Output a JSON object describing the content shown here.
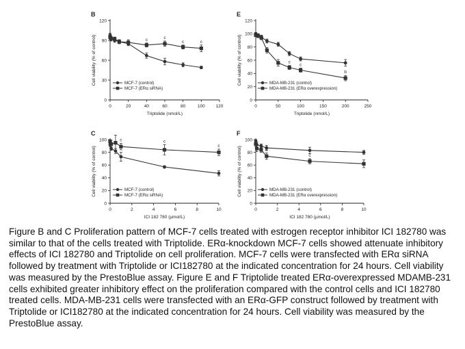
{
  "caption": "Figure B and C Proliferation pattern of MCF-7 cells treated with estrogen receptor inhibitor ICI 182780 was similar to that of the cells treated with Triptolide. ERα-knockdown MCF-7 cells showed attenuate inhibitory effects of ICI 182780 and Triptolide on cell proliferation. MCF-7 cells were transfected with ERα siRNA followed by treatment with Triptolide or ICI182780 at the indicated concentration for 24 hours. Cell viability was measured by the PrestoBlue assay. Figure E and F Triptolide treated ERα-overexpressed MDAMB-231 cells exhibited greater inhibitory effect on the proliferation compared with the control cells and ICI 182780 treated cells. MDA-MB-231 cells were transfected with an ERα-GFP construct followed by treatment with Triptolide or ICI182780 at the indicated concentration for 24 hours. Cell viability was measured by the PrestoBlue assay.",
  "colors": {
    "line": "#333333",
    "axis": "#222222",
    "text": "#222222"
  },
  "chart_data": [
    {
      "panel": "B",
      "type": "line",
      "ylabel": "Cell viability (% of control)",
      "xlabel": "Triptolide (nmol/L)",
      "xlim": [
        0,
        120
      ],
      "ylim": [
        0,
        120
      ],
      "xticks": [
        0,
        20,
        40,
        60,
        80,
        100,
        120
      ],
      "yticks": [
        0,
        30,
        60,
        90,
        120
      ],
      "legend_position": "bottom-left",
      "series": [
        {
          "name": "MCF-7 (control)",
          "marker": "circle",
          "x": [
            0,
            1,
            5,
            10,
            20,
            40,
            60,
            80,
            100
          ],
          "y": [
            98,
            92,
            90,
            88,
            85,
            67,
            58,
            53,
            49
          ],
          "err": [
            3,
            3,
            3,
            3,
            3,
            4,
            5,
            3,
            2
          ],
          "annotations": [
            "",
            "",
            "",
            "",
            "",
            "",
            "",
            "",
            ""
          ]
        },
        {
          "name": "MCF-7 (ERα siRNA)",
          "marker": "square",
          "x": [
            0,
            1,
            5,
            10,
            20,
            40,
            60,
            80,
            100
          ],
          "y": [
            95,
            93,
            92,
            88,
            87,
            83,
            85,
            80,
            78
          ],
          "err": [
            3,
            3,
            3,
            3,
            4,
            3,
            4,
            3,
            5
          ],
          "annotations": [
            "",
            "",
            "",
            "",
            "",
            "c",
            "c",
            "c",
            "c"
          ]
        }
      ]
    },
    {
      "panel": "C",
      "type": "line",
      "ylabel": "Cell viability (% of control)",
      "xlabel": "ICI 182 780 (μmol/L)",
      "xlim": [
        0,
        10
      ],
      "ylim": [
        0,
        100
      ],
      "xticks": [
        0,
        2,
        4,
        6,
        8,
        10
      ],
      "yticks": [
        0,
        20,
        40,
        60,
        80,
        100
      ],
      "legend_position": "bottom-left",
      "series": [
        {
          "name": "MCF-7 (control)",
          "marker": "circle",
          "x": [
            0,
            0.1,
            0.5,
            1,
            5,
            10
          ],
          "y": [
            92,
            86,
            82,
            73,
            57,
            47
          ],
          "err": [
            3,
            3,
            4,
            7,
            2,
            4
          ],
          "annotations": [
            "",
            "",
            "",
            "",
            "",
            ""
          ]
        },
        {
          "name": "MCF-7 (ERα siRNA)",
          "marker": "square",
          "x": [
            0,
            0.1,
            0.5,
            1,
            5,
            10
          ],
          "y": [
            97,
            93,
            95,
            89,
            84,
            80
          ],
          "err": [
            3,
            6,
            12,
            5,
            8,
            5
          ],
          "annotations": [
            "",
            "",
            "",
            "c",
            "c",
            "c"
          ]
        }
      ]
    },
    {
      "panel": "E",
      "type": "line",
      "ylabel": "Cell viability (% of control)",
      "xlabel": "Triptolide (nmol/L)",
      "xlim": [
        0,
        250
      ],
      "ylim": [
        0,
        120
      ],
      "xticks": [
        0,
        50,
        100,
        150,
        200,
        250
      ],
      "yticks": [
        0,
        20,
        40,
        60,
        80,
        100,
        120
      ],
      "legend_position": "bottom-left",
      "series": [
        {
          "name": "MDA-MB-231 (control)",
          "marker": "circle",
          "x": [
            0,
            5,
            12.5,
            25,
            50,
            75,
            100,
            200
          ],
          "y": [
            100,
            98,
            95,
            89,
            84,
            70,
            62,
            56
          ],
          "err": [
            2,
            2,
            3,
            3,
            3,
            3,
            3,
            5
          ],
          "annotations": [
            "",
            "",
            "",
            "",
            "",
            "",
            "",
            ""
          ]
        },
        {
          "name": "MDA-MB-231 (ERα overexpression)",
          "marker": "square",
          "x": [
            0,
            5,
            12.5,
            25,
            50,
            75,
            100,
            200
          ],
          "y": [
            98,
            97,
            94,
            75,
            56,
            49,
            45,
            33
          ],
          "err": [
            2,
            3,
            3,
            4,
            5,
            3,
            3,
            4
          ],
          "annotations": [
            "",
            "",
            "",
            "",
            "",
            "c",
            "c",
            "b"
          ]
        }
      ]
    },
    {
      "panel": "F",
      "type": "line",
      "ylabel": "Cell viability (% of control)",
      "xlabel": "ICI 182 780 (μmol/L)",
      "xlim": [
        0,
        10
      ],
      "ylim": [
        0,
        100
      ],
      "xticks": [
        0,
        2,
        4,
        6,
        8,
        10
      ],
      "yticks": [
        0,
        20,
        40,
        60,
        80,
        100
      ],
      "legend_position": "bottom-left",
      "series": [
        {
          "name": "MDA-MB-231 (control)",
          "marker": "circle",
          "x": [
            0,
            0.1,
            0.5,
            1,
            5,
            10
          ],
          "y": [
            98,
            92,
            90,
            87,
            83,
            80
          ],
          "err": [
            2,
            4,
            3,
            4,
            5,
            3
          ],
          "annotations": [
            "",
            "",
            "",
            "",
            "",
            ""
          ]
        },
        {
          "name": "MDA-MB-231 (ERα overexpression)",
          "marker": "square",
          "x": [
            0,
            0.1,
            0.5,
            1,
            5,
            10
          ],
          "y": [
            93,
            86,
            84,
            74,
            66,
            62
          ],
          "err": [
            4,
            5,
            4,
            5,
            4,
            6
          ],
          "annotations": [
            "",
            "",
            "",
            "b",
            "c",
            ""
          ]
        }
      ]
    }
  ]
}
